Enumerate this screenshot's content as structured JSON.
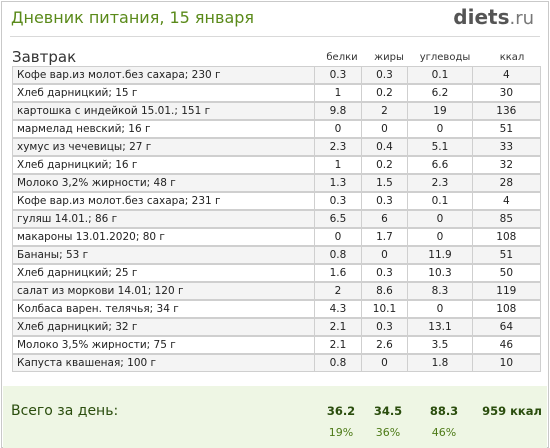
{
  "header": {
    "title": "Дневник питания, 15 января",
    "logo_main": "diets",
    "logo_suffix": ".ru"
  },
  "meal": {
    "name": "Завтрак",
    "columns": {
      "protein": "белки",
      "fat": "жиры",
      "carbs": "углеводы",
      "kcal": "ккал"
    },
    "rows": [
      {
        "name": "Кофе вар.из молот.без сахара; 230 г",
        "protein": "0.3",
        "fat": "0.3",
        "carbs": "0.1",
        "kcal": "4"
      },
      {
        "name": "Хлеб дарницкий; 15 г",
        "protein": "1",
        "fat": "0.2",
        "carbs": "6.2",
        "kcal": "30"
      },
      {
        "name": "картошка с индейкой 15.01.; 151 г",
        "protein": "9.8",
        "fat": "2",
        "carbs": "19",
        "kcal": "136"
      },
      {
        "name": "мармелад невский; 16 г",
        "protein": "0",
        "fat": "0",
        "carbs": "0",
        "kcal": "51"
      },
      {
        "name": "хумус из чечевицы; 27 г",
        "protein": "2.3",
        "fat": "0.4",
        "carbs": "5.1",
        "kcal": "33"
      },
      {
        "name": "Хлеб дарницкий; 16 г",
        "protein": "1",
        "fat": "0.2",
        "carbs": "6.6",
        "kcal": "32"
      },
      {
        "name": "Молоко 3,2% жирности; 48 г",
        "protein": "1.3",
        "fat": "1.5",
        "carbs": "2.3",
        "kcal": "28"
      },
      {
        "name": "Кофе вар.из молот.без сахара; 231 г",
        "protein": "0.3",
        "fat": "0.3",
        "carbs": "0.1",
        "kcal": "4"
      },
      {
        "name": "гуляш 14.01.; 86 г",
        "protein": "6.5",
        "fat": "6",
        "carbs": "0",
        "kcal": "85"
      },
      {
        "name": "макароны 13.01.2020; 80 г",
        "protein": "0",
        "fat": "1.7",
        "carbs": "0",
        "kcal": "108"
      },
      {
        "name": "Бананы; 53 г",
        "protein": "0.8",
        "fat": "0",
        "carbs": "11.9",
        "kcal": "51"
      },
      {
        "name": "Хлеб дарницкий; 25 г",
        "protein": "1.6",
        "fat": "0.3",
        "carbs": "10.3",
        "kcal": "50"
      },
      {
        "name": "салат из моркови 14.01; 120 г",
        "protein": "2",
        "fat": "8.6",
        "carbs": "8.3",
        "kcal": "119"
      },
      {
        "name": "Колбаса варен. телячья; 34 г",
        "protein": "4.3",
        "fat": "10.1",
        "carbs": "0",
        "kcal": "108"
      },
      {
        "name": "Хлеб дарницкий; 32 г",
        "protein": "2.1",
        "fat": "0.3",
        "carbs": "13.1",
        "kcal": "64"
      },
      {
        "name": "Молоко 3,5% жирности; 75 г",
        "protein": "2.1",
        "fat": "2.6",
        "carbs": "3.5",
        "kcal": "46"
      },
      {
        "name": "Капуста квашеная; 100 г",
        "protein": "0.8",
        "fat": "0",
        "carbs": "1.8",
        "kcal": "10"
      }
    ]
  },
  "totals": {
    "label": "Всего за день:",
    "protein": "36.2",
    "fat": "34.5",
    "carbs": "88.3",
    "kcal": "959 ккал",
    "protein_pct": "19%",
    "fat_pct": "36%",
    "carbs_pct": "46%"
  }
}
